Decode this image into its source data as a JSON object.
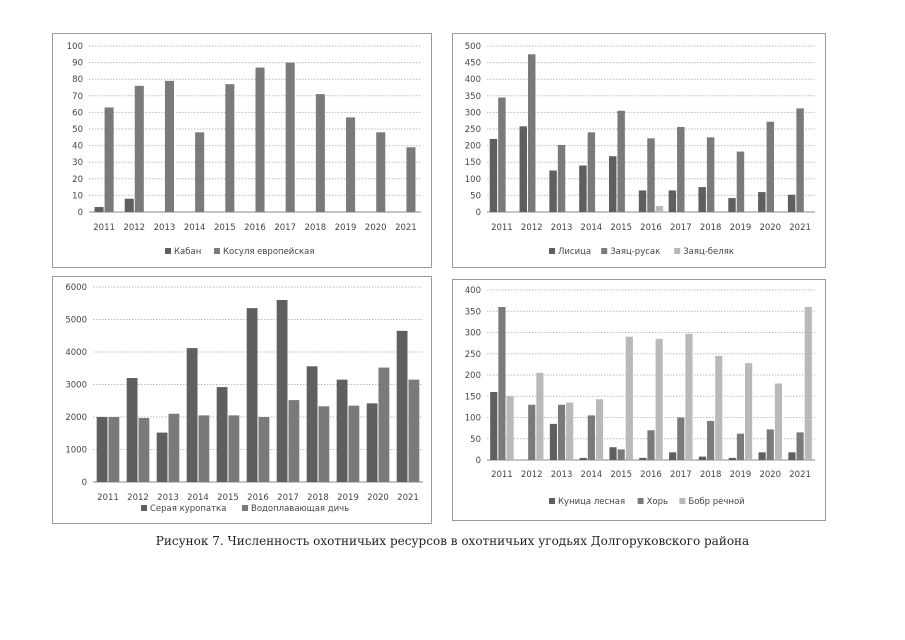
{
  "figure_caption": "Рисунок 7. Численность охотничьих ресурсов в охотничьих угодьях Долгоруковского района",
  "chart_data": [
    {
      "type": "bar",
      "title": "",
      "categories": [
        "2011",
        "2012",
        "2013",
        "2014",
        "2015",
        "2016",
        "2017",
        "2018",
        "2019",
        "2020",
        "2021"
      ],
      "ylim": [
        0,
        100
      ],
      "yticks": [
        0,
        10,
        20,
        30,
        40,
        50,
        60,
        70,
        80,
        90,
        100
      ],
      "series": [
        {
          "name": "Кабан",
          "values": [
            3,
            8,
            0,
            0,
            0,
            0,
            0,
            0,
            0,
            0,
            0
          ],
          "color": "#5f5f5f"
        },
        {
          "name": "Косуля европейская",
          "values": [
            63,
            76,
            79,
            48,
            77,
            87,
            90,
            71,
            57,
            48,
            39
          ],
          "color": "#7a7a7a"
        }
      ]
    },
    {
      "type": "bar",
      "title": "",
      "categories": [
        "2011",
        "2012",
        "2013",
        "2014",
        "2015",
        "2016",
        "2017",
        "2018",
        "2019",
        "2020",
        "2021"
      ],
      "ylim": [
        0,
        500
      ],
      "yticks": [
        0,
        50,
        100,
        150,
        200,
        250,
        300,
        350,
        400,
        450,
        500
      ],
      "series": [
        {
          "name": "Лисица",
          "values": [
            220,
            258,
            125,
            140,
            168,
            65,
            65,
            75,
            42,
            60,
            52
          ],
          "color": "#5f5f5f"
        },
        {
          "name": "Заяц-русак",
          "values": [
            345,
            475,
            202,
            240,
            305,
            222,
            256,
            225,
            182,
            272,
            312
          ],
          "color": "#7a7a7a"
        },
        {
          "name": "Заяц-беляк",
          "values": [
            0,
            0,
            0,
            0,
            0,
            18,
            0,
            0,
            0,
            0,
            0
          ],
          "color": "#b9b9b9"
        }
      ]
    },
    {
      "type": "bar",
      "title": "",
      "categories": [
        "2011",
        "2012",
        "2013",
        "2014",
        "2015",
        "2016",
        "2017",
        "2018",
        "2019",
        "2020",
        "2021"
      ],
      "ylim": [
        0,
        6000
      ],
      "yticks": [
        0,
        1000,
        2000,
        3000,
        4000,
        5000,
        6000
      ],
      "series": [
        {
          "name": "Серая куропатка",
          "values": [
            2000,
            3200,
            1520,
            4120,
            2920,
            5350,
            5600,
            3560,
            3150,
            2420,
            4650
          ],
          "color": "#5f5f5f"
        },
        {
          "name": "Водоплавающая дичь",
          "values": [
            2000,
            1970,
            2100,
            2050,
            2050,
            2000,
            2520,
            2330,
            2350,
            3520,
            3150
          ],
          "color": "#7a7a7a"
        }
      ]
    },
    {
      "type": "bar",
      "title": "",
      "categories": [
        "2011",
        "2012",
        "2013",
        "2014",
        "2015",
        "2016",
        "2017",
        "2018",
        "2019",
        "2020",
        "2021"
      ],
      "ylim": [
        0,
        400
      ],
      "yticks": [
        0,
        50,
        100,
        150,
        200,
        250,
        300,
        350,
        400
      ],
      "series": [
        {
          "name": "Куница лесная",
          "values": [
            160,
            0,
            85,
            5,
            30,
            5,
            18,
            8,
            5,
            18,
            18
          ],
          "color": "#5f5f5f"
        },
        {
          "name": "Хорь",
          "values": [
            360,
            130,
            130,
            105,
            25,
            70,
            100,
            92,
            62,
            72,
            65
          ],
          "color": "#7a7a7a"
        },
        {
          "name": "Бобр речной",
          "values": [
            150,
            205,
            135,
            143,
            290,
            285,
            297,
            245,
            228,
            180,
            360
          ],
          "color": "#b9b9b9"
        }
      ]
    }
  ]
}
